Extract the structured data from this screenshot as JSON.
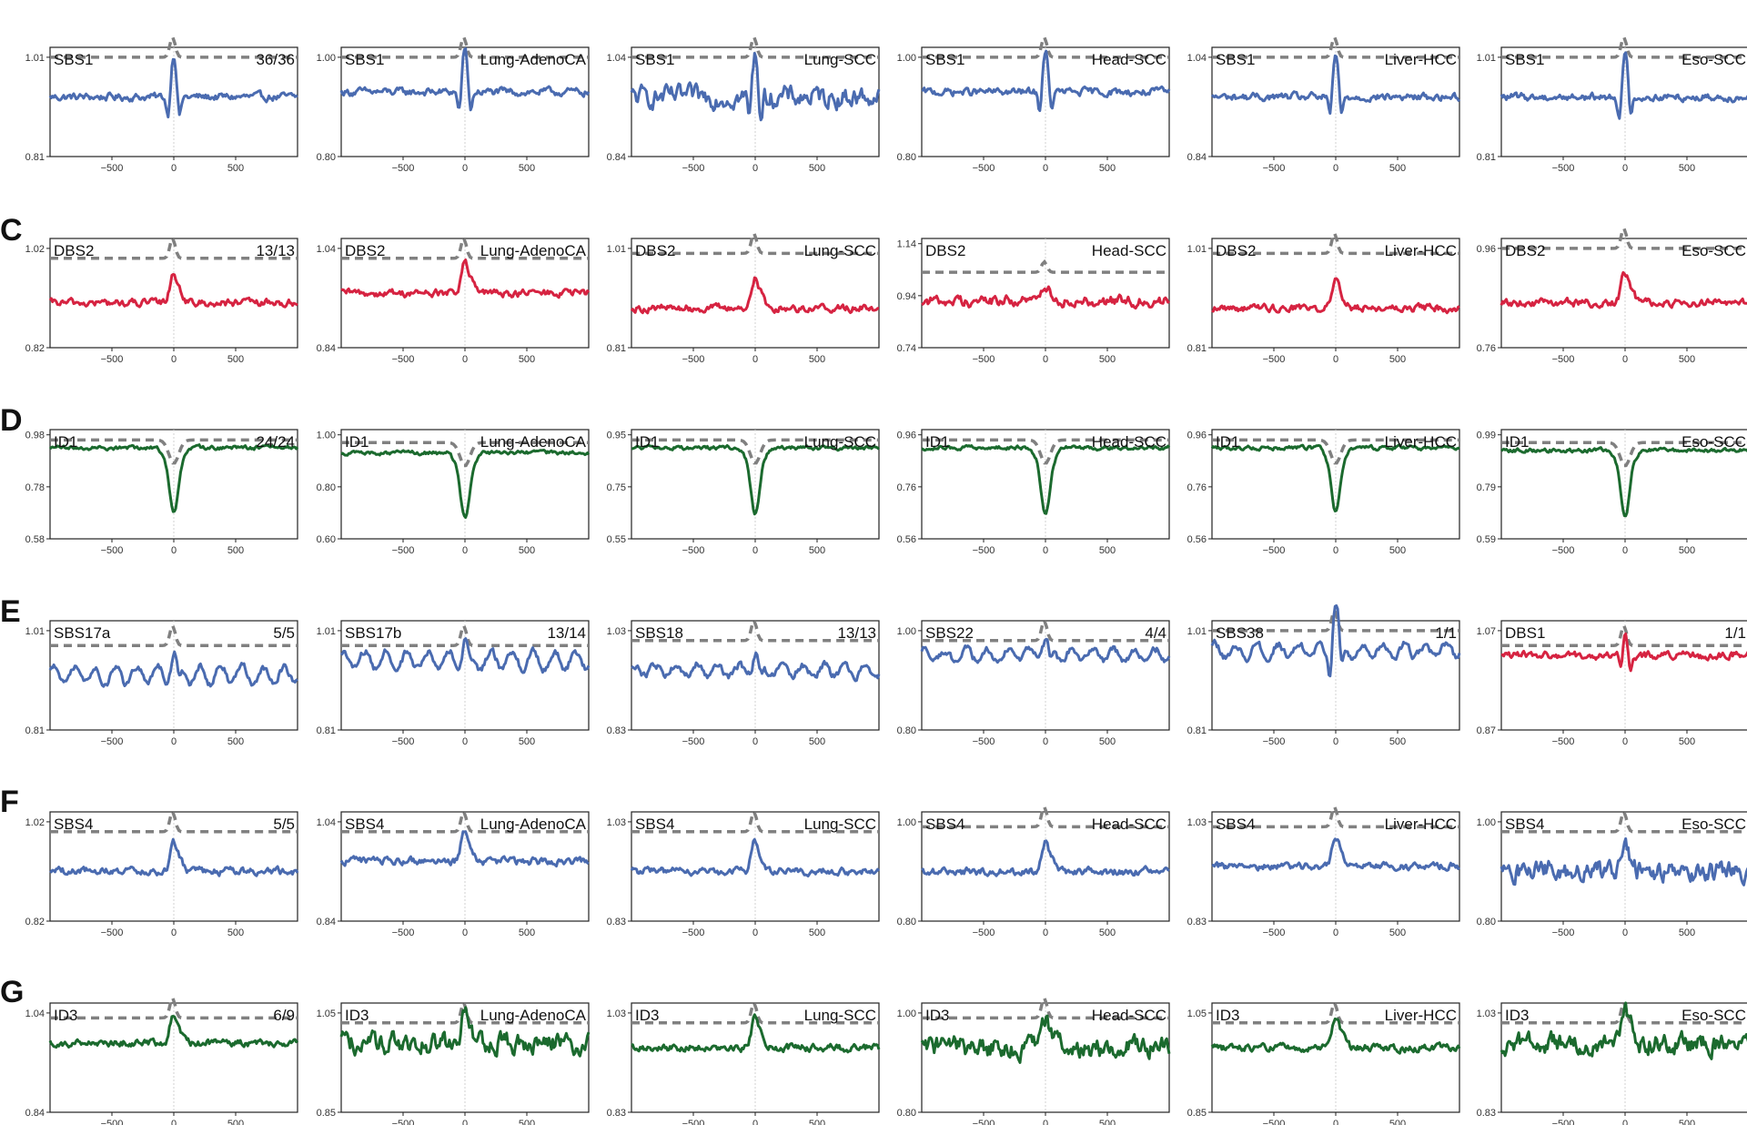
{
  "row_letters": [
    "C",
    "D",
    "E",
    "F",
    "G"
  ],
  "colors": {
    "sbs": "#4a6bb0",
    "dbs": "#d62341",
    "id": "#1b6a2e",
    "baseline": "#808080",
    "center_line": "#d2d2d2"
  },
  "chart_data": [
    {
      "type": "line",
      "row": 0,
      "col": 0,
      "signature": "SBS1",
      "label_right": "36/36",
      "color": "sbs",
      "shape": "peak",
      "yticks": [
        "1.01",
        "0.81"
      ],
      "xticks": [
        -500,
        0,
        500
      ],
      "xlim": [
        -1000,
        1000
      ],
      "series_level": 0.93,
      "baseline_level": 1.01
    },
    {
      "type": "line",
      "row": 0,
      "col": 1,
      "signature": "SBS1",
      "label_right": "Lung-AdenoCA",
      "color": "sbs",
      "shape": "peak",
      "yticks": [
        "1.00",
        "0.80"
      ],
      "xticks": [
        -500,
        0,
        500
      ],
      "xlim": [
        -1000,
        1000
      ],
      "series_level": 0.93,
      "baseline_level": 1.0
    },
    {
      "type": "line",
      "row": 0,
      "col": 2,
      "signature": "SBS1",
      "label_right": "Lung-SCC",
      "color": "sbs",
      "shape": "peak_noisy",
      "yticks": [
        "1.04",
        "0.84"
      ],
      "xticks": [
        -500,
        0,
        500
      ],
      "xlim": [
        -1000,
        1000
      ],
      "series_level": 0.96,
      "baseline_level": 1.04
    },
    {
      "type": "line",
      "row": 0,
      "col": 3,
      "signature": "SBS1",
      "label_right": "Head-SCC",
      "color": "sbs",
      "shape": "peak",
      "yticks": [
        "1.00",
        "0.80"
      ],
      "xticks": [
        -500,
        0,
        500
      ],
      "xlim": [
        -1000,
        1000
      ],
      "series_level": 0.93,
      "baseline_level": 1.0
    },
    {
      "type": "line",
      "row": 0,
      "col": 4,
      "signature": "SBS1",
      "label_right": "Liver-HCC",
      "color": "sbs",
      "shape": "peak",
      "yticks": [
        "1.04",
        "0.84"
      ],
      "xticks": [
        -500,
        0,
        500
      ],
      "xlim": [
        -1000,
        1000
      ],
      "series_level": 0.96,
      "baseline_level": 1.04
    },
    {
      "type": "line",
      "row": 0,
      "col": 5,
      "signature": "SBS1",
      "label_right": "Eso-SCC",
      "color": "sbs",
      "shape": "peak",
      "yticks": [
        "1.01",
        "0.81"
      ],
      "xticks": [
        -500,
        0,
        500
      ],
      "xlim": [
        -1000,
        1000
      ],
      "series_level": 0.93,
      "baseline_level": 1.01
    },
    {
      "type": "line",
      "row": 1,
      "col": 0,
      "signature": "DBS2",
      "label_right": "13/13",
      "color": "dbs",
      "shape": "bump",
      "yticks": [
        "1.02",
        "0.82"
      ],
      "xticks": [
        -500,
        0,
        500
      ],
      "xlim": [
        -1000,
        1000
      ],
      "series_level": 0.91,
      "baseline_level": 1.0
    },
    {
      "type": "line",
      "row": 1,
      "col": 1,
      "signature": "DBS2",
      "label_right": "Lung-AdenoCA",
      "color": "dbs",
      "shape": "bump",
      "yticks": [
        "1.04",
        "0.84"
      ],
      "xticks": [
        -500,
        0,
        500
      ],
      "xlim": [
        -1000,
        1000
      ],
      "series_level": 0.95,
      "baseline_level": 1.02
    },
    {
      "type": "line",
      "row": 1,
      "col": 2,
      "signature": "DBS2",
      "label_right": "Lung-SCC",
      "color": "dbs",
      "shape": "bump",
      "yticks": [
        "1.01",
        "0.81"
      ],
      "xticks": [
        -500,
        0,
        500
      ],
      "xlim": [
        -1000,
        1000
      ],
      "series_level": 0.89,
      "baseline_level": 1.0
    },
    {
      "type": "line",
      "row": 1,
      "col": 3,
      "signature": "DBS2",
      "label_right": "Head-SCC",
      "color": "dbs",
      "shape": "bump_noisy",
      "yticks": [
        "1.14",
        "0.94",
        "0.74"
      ],
      "xticks": [
        -500,
        0,
        500
      ],
      "xlim": [
        -1000,
        1000
      ],
      "series_level": 0.92,
      "baseline_level": 1.03
    },
    {
      "type": "line",
      "row": 1,
      "col": 4,
      "signature": "DBS2",
      "label_right": "Liver-HCC",
      "color": "dbs",
      "shape": "bump",
      "yticks": [
        "1.01",
        "0.81"
      ],
      "xticks": [
        -500,
        0,
        500
      ],
      "xlim": [
        -1000,
        1000
      ],
      "series_level": 0.89,
      "baseline_level": 1.0
    },
    {
      "type": "line",
      "row": 1,
      "col": 5,
      "signature": "DBS2",
      "label_right": "Eso-SCC",
      "color": "dbs",
      "shape": "bump",
      "yticks": [
        "0.96",
        "0.76"
      ],
      "xticks": [
        -500,
        0,
        500
      ],
      "xlim": [
        -1000,
        1000
      ],
      "series_level": 0.85,
      "baseline_level": 0.96
    },
    {
      "type": "line",
      "row": 2,
      "col": 0,
      "signature": "ID1",
      "label_right": "24/24",
      "color": "id",
      "shape": "dip",
      "yticks": [
        "0.98",
        "0.78",
        "0.58"
      ],
      "xticks": [
        -500,
        0,
        500
      ],
      "xlim": [
        -1000,
        1000
      ],
      "series_level": 0.93,
      "baseline_level": 0.96
    },
    {
      "type": "line",
      "row": 2,
      "col": 1,
      "signature": "ID1",
      "label_right": "Lung-AdenoCA",
      "color": "id",
      "shape": "dip",
      "yticks": [
        "1.00",
        "0.80",
        "0.60"
      ],
      "xticks": [
        -500,
        0,
        500
      ],
      "xlim": [
        -1000,
        1000
      ],
      "series_level": 0.93,
      "baseline_level": 0.97
    },
    {
      "type": "line",
      "row": 2,
      "col": 2,
      "signature": "ID1",
      "label_right": "Lung-SCC",
      "color": "id",
      "shape": "dip",
      "yticks": [
        "0.95",
        "0.75",
        "0.55"
      ],
      "xticks": [
        -500,
        0,
        500
      ],
      "xlim": [
        -1000,
        1000
      ],
      "series_level": 0.9,
      "baseline_level": 0.93
    },
    {
      "type": "line",
      "row": 2,
      "col": 3,
      "signature": "ID1",
      "label_right": "Head-SCC",
      "color": "id",
      "shape": "dip",
      "yticks": [
        "0.96",
        "0.76",
        "0.56"
      ],
      "xticks": [
        -500,
        0,
        500
      ],
      "xlim": [
        -1000,
        1000
      ],
      "series_level": 0.91,
      "baseline_level": 0.94
    },
    {
      "type": "line",
      "row": 2,
      "col": 4,
      "signature": "ID1",
      "label_right": "Liver-HCC",
      "color": "id",
      "shape": "dip",
      "yticks": [
        "0.96",
        "0.76",
        "0.56"
      ],
      "xticks": [
        -500,
        0,
        500
      ],
      "xlim": [
        -1000,
        1000
      ],
      "series_level": 0.91,
      "baseline_level": 0.94
    },
    {
      "type": "line",
      "row": 2,
      "col": 5,
      "signature": "ID1",
      "label_right": "Eso-SCC",
      "color": "id",
      "shape": "dip",
      "yticks": [
        "0.99",
        "0.79",
        "0.59"
      ],
      "xticks": [
        -500,
        0,
        500
      ],
      "xlim": [
        -1000,
        1000
      ],
      "series_level": 0.93,
      "baseline_level": 0.96
    },
    {
      "type": "line",
      "row": 3,
      "col": 0,
      "signature": "SBS17a",
      "label_right": "5/5",
      "color": "sbs",
      "shape": "oscillate",
      "yticks": [
        "1.01",
        "0.81"
      ],
      "xticks": [
        -500,
        0,
        500
      ],
      "xlim": [
        -1000,
        1000
      ],
      "series_level": 0.92,
      "baseline_level": 0.98
    },
    {
      "type": "line",
      "row": 3,
      "col": 1,
      "signature": "SBS17b",
      "label_right": "13/14",
      "color": "sbs",
      "shape": "oscillate",
      "yticks": [
        "1.01",
        "0.81"
      ],
      "xticks": [
        -500,
        0,
        500
      ],
      "xlim": [
        -1000,
        1000
      ],
      "series_level": 0.95,
      "baseline_level": 0.98
    },
    {
      "type": "line",
      "row": 3,
      "col": 2,
      "signature": "SBS18",
      "label_right": "13/13",
      "color": "sbs",
      "shape": "oscillate_small",
      "yticks": [
        "1.03",
        "0.83"
      ],
      "xticks": [
        -500,
        0,
        500
      ],
      "xlim": [
        -1000,
        1000
      ],
      "series_level": 0.95,
      "baseline_level": 1.01
    },
    {
      "type": "line",
      "row": 3,
      "col": 3,
      "signature": "SBS22",
      "label_right": "4/4",
      "color": "sbs",
      "shape": "oscillate_small",
      "yticks": [
        "1.00",
        "0.80"
      ],
      "xticks": [
        -500,
        0,
        500
      ],
      "xlim": [
        -1000,
        1000
      ],
      "series_level": 0.95,
      "baseline_level": 0.98
    },
    {
      "type": "line",
      "row": 3,
      "col": 4,
      "signature": "SBS38",
      "label_right": "1/1",
      "color": "sbs",
      "shape": "oscillate_peak",
      "yticks": [
        "1.01",
        "0.81"
      ],
      "xticks": [
        -500,
        0,
        500
      ],
      "xlim": [
        -1000,
        1000
      ],
      "series_level": 0.97,
      "baseline_level": 1.01
    },
    {
      "type": "line",
      "row": 3,
      "col": 5,
      "signature": "DBS1",
      "label_right": "1/1",
      "color": "dbs",
      "shape": "peak_small",
      "yticks": [
        "1.07",
        "0.87"
      ],
      "xticks": [
        -500,
        0,
        500
      ],
      "xlim": [
        -1000,
        1000
      ],
      "series_level": 1.02,
      "baseline_level": 1.04
    },
    {
      "type": "line",
      "row": 4,
      "col": 0,
      "signature": "SBS4",
      "label_right": "5/5",
      "color": "sbs",
      "shape": "bump",
      "yticks": [
        "1.02",
        "0.82"
      ],
      "xticks": [
        -500,
        0,
        500
      ],
      "xlim": [
        -1000,
        1000
      ],
      "series_level": 0.92,
      "baseline_level": 1.0
    },
    {
      "type": "line",
      "row": 4,
      "col": 1,
      "signature": "SBS4",
      "label_right": "Lung-AdenoCA",
      "color": "sbs",
      "shape": "bump",
      "yticks": [
        "1.04",
        "0.84"
      ],
      "xticks": [
        -500,
        0,
        500
      ],
      "xlim": [
        -1000,
        1000
      ],
      "series_level": 0.96,
      "baseline_level": 1.02
    },
    {
      "type": "line",
      "row": 4,
      "col": 2,
      "signature": "SBS4",
      "label_right": "Lung-SCC",
      "color": "sbs",
      "shape": "bump",
      "yticks": [
        "1.03",
        "0.83"
      ],
      "xticks": [
        -500,
        0,
        500
      ],
      "xlim": [
        -1000,
        1000
      ],
      "series_level": 0.93,
      "baseline_level": 1.01
    },
    {
      "type": "line",
      "row": 4,
      "col": 3,
      "signature": "SBS4",
      "label_right": "Head-SCC",
      "color": "sbs",
      "shape": "bump",
      "yticks": [
        "1.00",
        "0.80"
      ],
      "xticks": [
        -500,
        0,
        500
      ],
      "xlim": [
        -1000,
        1000
      ],
      "series_level": 0.9,
      "baseline_level": 0.99
    },
    {
      "type": "line",
      "row": 4,
      "col": 4,
      "signature": "SBS4",
      "label_right": "Liver-HCC",
      "color": "sbs",
      "shape": "bump",
      "yticks": [
        "1.03",
        "0.83"
      ],
      "xticks": [
        -500,
        0,
        500
      ],
      "xlim": [
        -1000,
        1000
      ],
      "series_level": 0.94,
      "baseline_level": 1.02
    },
    {
      "type": "line",
      "row": 4,
      "col": 5,
      "signature": "SBS4",
      "label_right": "Eso-SCC",
      "color": "sbs",
      "shape": "bump_noisy",
      "yticks": [
        "1.00",
        "0.80"
      ],
      "xticks": [
        -500,
        0,
        500
      ],
      "xlim": [
        -1000,
        1000
      ],
      "series_level": 0.9,
      "baseline_level": 0.98
    },
    {
      "type": "line",
      "row": 5,
      "col": 0,
      "signature": "ID3",
      "label_right": "6/9",
      "color": "id",
      "shape": "bump",
      "yticks": [
        "1.04",
        "0.84"
      ],
      "xticks": [
        -500,
        0,
        500
      ],
      "xlim": [
        -1000,
        1000
      ],
      "series_level": 0.98,
      "baseline_level": 1.03
    },
    {
      "type": "line",
      "row": 5,
      "col": 1,
      "signature": "ID3",
      "label_right": "Lung-AdenoCA",
      "color": "id",
      "shape": "bump_noisy",
      "yticks": [
        "1.05",
        "0.85"
      ],
      "xticks": [
        -500,
        0,
        500
      ],
      "xlim": [
        -1000,
        1000
      ],
      "series_level": 0.99,
      "baseline_level": 1.03
    },
    {
      "type": "line",
      "row": 5,
      "col": 2,
      "signature": "ID3",
      "label_right": "Lung-SCC",
      "color": "id",
      "shape": "bump",
      "yticks": [
        "1.03",
        "0.83"
      ],
      "xticks": [
        -500,
        0,
        500
      ],
      "xlim": [
        -1000,
        1000
      ],
      "series_level": 0.96,
      "baseline_level": 1.01
    },
    {
      "type": "line",
      "row": 5,
      "col": 3,
      "signature": "ID3",
      "label_right": "Head-SCC",
      "color": "id",
      "shape": "bump_noisy",
      "yticks": [
        "1.00",
        "0.80"
      ],
      "xticks": [
        -500,
        0,
        500
      ],
      "xlim": [
        -1000,
        1000
      ],
      "series_level": 0.93,
      "baseline_level": 0.99
    },
    {
      "type": "line",
      "row": 5,
      "col": 4,
      "signature": "ID3",
      "label_right": "Liver-HCC",
      "color": "id",
      "shape": "bump",
      "yticks": [
        "1.05",
        "0.85"
      ],
      "xticks": [
        -500,
        0,
        500
      ],
      "xlim": [
        -1000,
        1000
      ],
      "series_level": 0.98,
      "baseline_level": 1.03
    },
    {
      "type": "line",
      "row": 5,
      "col": 5,
      "signature": "ID3",
      "label_right": "Eso-SCC",
      "color": "id",
      "shape": "bump_noisy",
      "yticks": [
        "1.03",
        "0.83"
      ],
      "xticks": [
        -500,
        0,
        500
      ],
      "xlim": [
        -1000,
        1000
      ],
      "series_level": 0.97,
      "baseline_level": 1.01
    }
  ]
}
